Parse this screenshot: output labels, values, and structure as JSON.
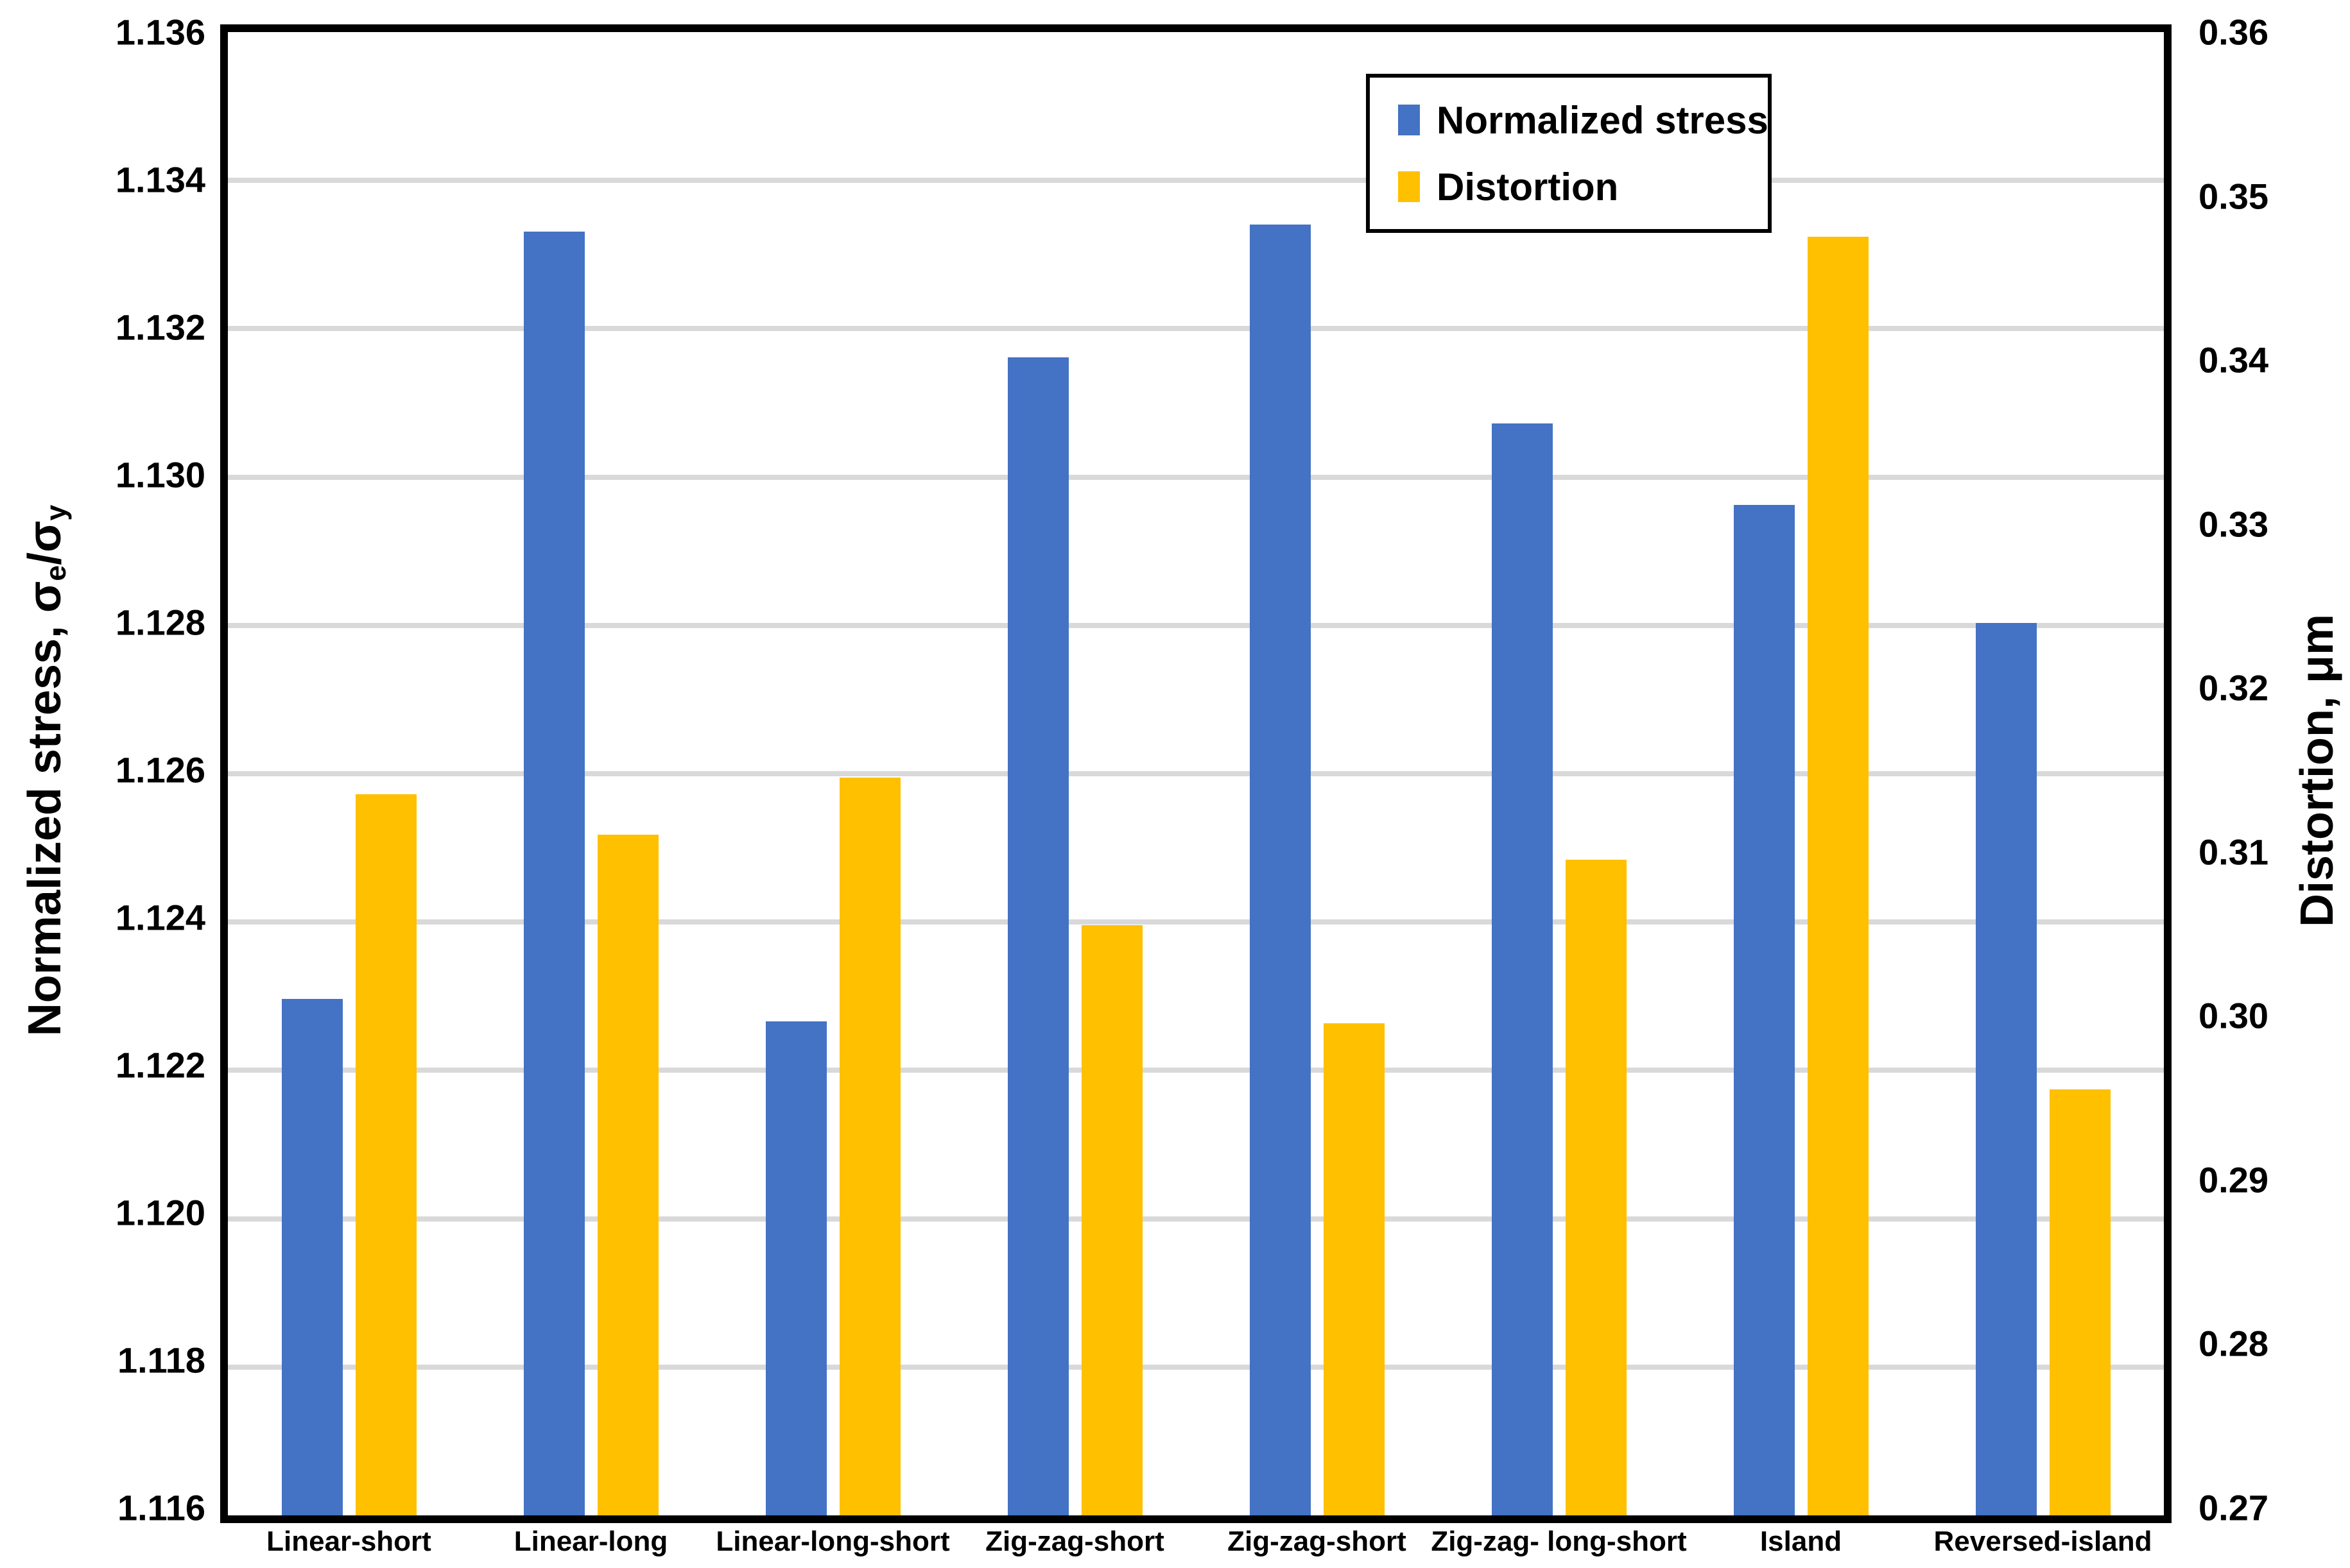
{
  "chart_data": {
    "type": "bar",
    "title": "",
    "categories": [
      "Linear-short",
      "Linear-long",
      "Linear-long-short",
      "Zig-zag-short",
      "Zig-zag-short",
      "Zig-zag- long-short",
      "Island",
      "Reversed-island"
    ],
    "series": [
      {
        "name": "Normalized stress",
        "axis": "left",
        "color": "#4472C4",
        "values": [
          1.123,
          1.1334,
          1.1227,
          1.1317,
          1.1335,
          1.1308,
          1.1297,
          1.1281
        ]
      },
      {
        "name": "Distortion",
        "axis": "right",
        "color": "#FFC000",
        "values": [
          0.314,
          0.3115,
          0.315,
          0.306,
          0.3,
          0.31,
          0.348,
          0.296
        ]
      }
    ],
    "left_axis": {
      "title_pre": "Normalized stress, σ",
      "title_sub1": "e",
      "title_mid": "/σ",
      "title_sub2": "y",
      "min": 1.116,
      "max": 1.136,
      "step": 0.002,
      "tick_labels": [
        "1.136",
        "1.134",
        "1.132",
        "1.130",
        "1.128",
        "1.126",
        "1.124",
        "1.122",
        "1.120",
        "1.118",
        "1.116"
      ]
    },
    "right_axis": {
      "title": "Distortion, μm",
      "min": 0.27,
      "max": 0.36,
      "step": 0.01,
      "tick_labels": [
        "0.36",
        "0.35",
        "0.34",
        "0.33",
        "0.32",
        "0.31",
        "0.30",
        "0.29",
        "0.28",
        "0.27"
      ]
    },
    "legend": {
      "position": "inside-top-right",
      "entries": [
        {
          "label": "Normalized stress",
          "color": "#4472C4"
        },
        {
          "label": "Distortion",
          "color": "#FFC000"
        }
      ]
    },
    "grid": true,
    "gridline_color": "#D9D9D9",
    "axis_line_color": "#000000",
    "plot_background": "#FFFFFF"
  }
}
